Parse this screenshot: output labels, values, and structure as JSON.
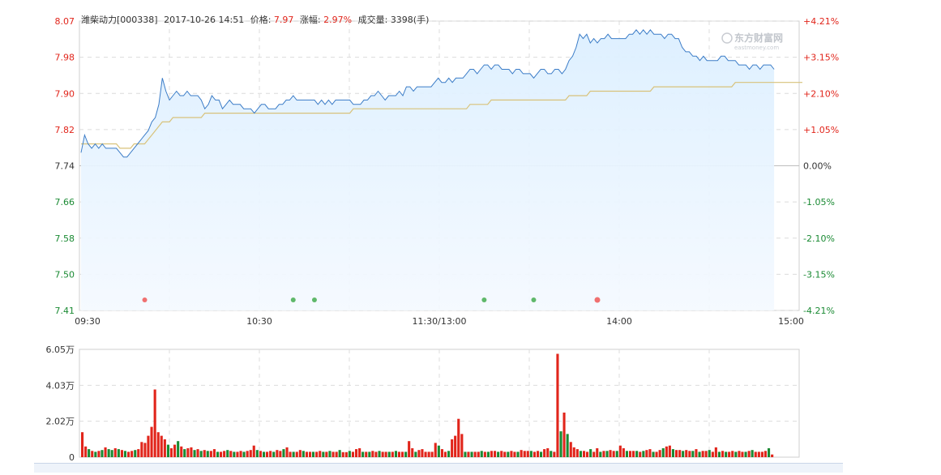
{
  "header": {
    "stock": "潍柴动力[000338]",
    "datetime": "2017-10-26 14:51",
    "price_label": "价格:",
    "price": "7.97",
    "change_label": "涨幅:",
    "change": "2.97%",
    "volume_label": "成交量:",
    "volume": "3398(手)"
  },
  "watermark": {
    "main": "东方财富网",
    "sub": "eastmoney.com"
  },
  "colors": {
    "up": "#e1251b",
    "down": "#1a8a33",
    "neutral": "#333333",
    "price_line": "#3b7cc7",
    "avg_line": "#d8c27a",
    "area_fill": "#dcefff"
  },
  "chart_data": [
    {
      "type": "line",
      "description_of_axes": "intraday price",
      "x_ticks": [
        "09:30",
        "10:30",
        "11:30/13:00",
        "14:00",
        "15:00"
      ],
      "y_left_ticks": [
        "8.07",
        "7.98",
        "7.90",
        "7.82",
        "7.74",
        "7.66",
        "7.58",
        "7.50",
        "7.41"
      ],
      "y_right_ticks": [
        "+4.21%",
        "+3.15%",
        "+2.10%",
        "+1.05%",
        "0.00%",
        "-1.05%",
        "-2.10%",
        "-3.15%",
        "-4.21%"
      ],
      "ylim": [
        7.41,
        8.07
      ],
      "prev_close": 7.74,
      "price": [
        7.77,
        7.81,
        7.79,
        7.78,
        7.79,
        7.78,
        7.79,
        7.78,
        7.78,
        7.78,
        7.78,
        7.77,
        7.76,
        7.76,
        7.77,
        7.78,
        7.79,
        7.8,
        7.81,
        7.82,
        7.84,
        7.85,
        7.88,
        7.94,
        7.91,
        7.89,
        7.9,
        7.91,
        7.9,
        7.9,
        7.91,
        7.9,
        7.9,
        7.9,
        7.89,
        7.87,
        7.88,
        7.9,
        7.89,
        7.89,
        7.87,
        7.88,
        7.89,
        7.88,
        7.88,
        7.88,
        7.87,
        7.87,
        7.87,
        7.86,
        7.87,
        7.88,
        7.88,
        7.87,
        7.87,
        7.87,
        7.88,
        7.88,
        7.89,
        7.89,
        7.9,
        7.89,
        7.89,
        7.89,
        7.89,
        7.89,
        7.89,
        7.88,
        7.89,
        7.88,
        7.89,
        7.88,
        7.89,
        7.89,
        7.89,
        7.89,
        7.89,
        7.88,
        7.88,
        7.88,
        7.89,
        7.89,
        7.9,
        7.9,
        7.91,
        7.9,
        7.89,
        7.9,
        7.9,
        7.9,
        7.91,
        7.9,
        7.92,
        7.92,
        7.91,
        7.92,
        7.92,
        7.92,
        7.92,
        7.92,
        7.93,
        7.94,
        7.93,
        7.93,
        7.94,
        7.93,
        7.94,
        7.94,
        7.94,
        7.95,
        7.96,
        7.96,
        7.95,
        7.96,
        7.97,
        7.97,
        7.96,
        7.97,
        7.97,
        7.96,
        7.96,
        7.96,
        7.95,
        7.96,
        7.96,
        7.95,
        7.95,
        7.95,
        7.94,
        7.95,
        7.96,
        7.96,
        7.95,
        7.95,
        7.96,
        7.96,
        7.95,
        7.96,
        7.98,
        7.99,
        8.01,
        8.04,
        8.03,
        8.04,
        8.02,
        8.03,
        8.02,
        8.03,
        8.03,
        8.04,
        8.03,
        8.03,
        8.03,
        8.03,
        8.03,
        8.04,
        8.04,
        8.05,
        8.04,
        8.05,
        8.04,
        8.05,
        8.04,
        8.04,
        8.04,
        8.03,
        8.04,
        8.04,
        8.03,
        8.03,
        8.01,
        8.0,
        8.0,
        7.99,
        7.99,
        7.98,
        7.99,
        7.98,
        7.98,
        7.98,
        7.98,
        7.99,
        7.99,
        7.98,
        7.98,
        7.98,
        7.97,
        7.97,
        7.97,
        7.96,
        7.97,
        7.97,
        7.96,
        7.97,
        7.97,
        7.97,
        7.96
      ],
      "average": [
        7.79,
        7.79,
        7.79,
        7.79,
        7.79,
        7.79,
        7.79,
        7.79,
        7.79,
        7.79,
        7.79,
        7.78,
        7.78,
        7.78,
        7.78,
        7.79,
        7.79,
        7.79,
        7.79,
        7.8,
        7.81,
        7.82,
        7.83,
        7.84,
        7.84,
        7.84,
        7.85,
        7.85,
        7.85,
        7.85,
        7.85,
        7.85,
        7.85,
        7.85,
        7.85,
        7.86,
        7.86,
        7.86,
        7.86,
        7.86,
        7.86,
        7.86,
        7.86,
        7.86,
        7.86,
        7.86,
        7.86,
        7.86,
        7.86,
        7.86,
        7.86,
        7.86,
        7.86,
        7.86,
        7.86,
        7.86,
        7.86,
        7.86,
        7.86,
        7.86,
        7.86,
        7.86,
        7.86,
        7.86,
        7.86,
        7.86,
        7.86,
        7.86,
        7.86,
        7.86,
        7.86,
        7.86,
        7.86,
        7.86,
        7.86,
        7.86,
        7.86,
        7.87,
        7.87,
        7.87,
        7.87,
        7.87,
        7.87,
        7.87,
        7.87,
        7.87,
        7.87,
        7.87,
        7.87,
        7.87,
        7.87,
        7.87,
        7.87,
        7.87,
        7.87,
        7.87,
        7.87,
        7.87,
        7.87,
        7.87,
        7.87,
        7.87,
        7.87,
        7.87,
        7.87,
        7.87,
        7.87,
        7.87,
        7.87,
        7.87,
        7.88,
        7.88,
        7.88,
        7.88,
        7.88,
        7.88,
        7.89,
        7.89,
        7.89,
        7.89,
        7.89,
        7.89,
        7.89,
        7.89,
        7.89,
        7.89,
        7.89,
        7.89,
        7.89,
        7.89,
        7.89,
        7.89,
        7.89,
        7.89,
        7.89,
        7.89,
        7.89,
        7.89,
        7.9,
        7.9,
        7.9,
        7.9,
        7.9,
        7.9,
        7.91,
        7.91,
        7.91,
        7.91,
        7.91,
        7.91,
        7.91,
        7.91,
        7.91,
        7.91,
        7.91,
        7.91,
        7.91,
        7.91,
        7.91,
        7.91,
        7.91,
        7.91,
        7.92,
        7.92,
        7.92,
        7.92,
        7.92,
        7.92,
        7.92,
        7.92,
        7.92,
        7.92,
        7.92,
        7.92,
        7.92,
        7.92,
        7.92,
        7.92,
        7.92,
        7.92,
        7.92,
        7.92,
        7.92,
        7.92,
        7.92,
        7.93,
        7.93,
        7.93,
        7.93,
        7.93,
        7.93,
        7.93,
        7.93,
        7.93,
        7.93,
        7.93,
        7.93,
        7.93,
        7.93,
        7.93,
        7.93,
        7.93,
        7.93,
        7.93,
        7.93
      ],
      "markers": [
        {
          "index": 18,
          "type": "up"
        },
        {
          "index": 60,
          "type": "down"
        },
        {
          "index": 66,
          "type": "down"
        },
        {
          "index": 114,
          "type": "down"
        },
        {
          "index": 128,
          "type": "down"
        },
        {
          "index": 146,
          "type": "up"
        }
      ]
    },
    {
      "type": "bar",
      "description_of_axes": "intraday volume",
      "y_ticks": [
        "6.05万",
        "4.03万",
        "2.02万",
        "0"
      ],
      "ylim": [
        0,
        60500
      ],
      "values": [
        14000,
        6000,
        4500,
        3500,
        3000,
        3500,
        4000,
        5500,
        4500,
        4000,
        5000,
        4500,
        4000,
        3500,
        3000,
        3500,
        4000,
        4500,
        8500,
        8000,
        12000,
        17000,
        38000,
        14000,
        12000,
        10000,
        7000,
        5000,
        7000,
        9000,
        6000,
        4500,
        5000,
        5500,
        4000,
        4500,
        3500,
        4000,
        3500,
        3500,
        4500,
        3000,
        3000,
        3500,
        4000,
        3500,
        3000,
        3000,
        3500,
        3000,
        3500,
        4000,
        6500,
        4000,
        3500,
        3000,
        3000,
        3500,
        3000,
        4000,
        3500,
        4500,
        5500,
        3000,
        3000,
        3000,
        4000,
        3500,
        3000,
        3000,
        3000,
        3000,
        3500,
        3000,
        3000,
        3500,
        3000,
        3000,
        4000,
        2800,
        2800,
        3500,
        3000,
        4500,
        5000,
        3000,
        3000,
        3000,
        3500,
        3000,
        3500,
        3000,
        3000,
        3000,
        3000,
        3500,
        3000,
        3000,
        3000,
        9000,
        5000,
        3000,
        4000,
        4500,
        3000,
        3000,
        3000,
        8000,
        6500,
        4500,
        3000,
        3500,
        10000,
        12000,
        21500,
        13000,
        3000,
        3000,
        3000,
        3000,
        3000,
        3500,
        3000,
        3000,
        3500,
        3500,
        3000,
        3500,
        3000,
        3000,
        3500,
        3000,
        3000,
        4000,
        3500,
        3500,
        3500,
        3000,
        3500,
        3000,
        4500,
        5000,
        3500,
        3000,
        58000,
        14500,
        25000,
        13000,
        8500,
        5500,
        4500,
        3500,
        3500,
        3000,
        4500,
        3000,
        5000,
        3000,
        3500,
        3500,
        4000,
        3500,
        3500,
        6500,
        5000,
        3500,
        3500,
        3500,
        3500,
        3000,
        3500,
        4000,
        4500,
        3000,
        3000,
        4000,
        5000,
        6000,
        6500,
        4500,
        4000,
        4000,
        3500,
        4000,
        3500,
        3500,
        4500,
        3000,
        3500,
        3500,
        4000,
        3000,
        5500,
        3000,
        3500,
        3000,
        3000,
        3500,
        3000,
        3500,
        3000,
        3000,
        3500,
        4000,
        3000,
        3000,
        3000,
        3500,
        5000,
        1500
      ],
      "colors": [
        "up",
        "up",
        "down",
        "up",
        "down",
        "up",
        "down",
        "up",
        "down",
        "down",
        "up",
        "down",
        "up",
        "down",
        "up",
        "up",
        "down",
        "up",
        "up",
        "up",
        "up",
        "up",
        "up",
        "up",
        "up",
        "up",
        "down",
        "up",
        "up",
        "down",
        "up",
        "down",
        "up",
        "up",
        "down",
        "up",
        "down",
        "up",
        "down",
        "up",
        "up",
        "down",
        "up",
        "up",
        "down",
        "up",
        "down",
        "up",
        "up",
        "down",
        "up",
        "up",
        "up",
        "down",
        "up",
        "down",
        "up",
        "up",
        "down",
        "up",
        "up",
        "down",
        "up",
        "up",
        "down",
        "up",
        "up",
        "down",
        "up",
        "up",
        "down",
        "up",
        "up",
        "down",
        "up",
        "down",
        "up",
        "up",
        "down",
        "up",
        "up",
        "down",
        "up",
        "up",
        "up",
        "down",
        "up",
        "down",
        "up",
        "up",
        "down",
        "up",
        "up",
        "down",
        "up",
        "down",
        "up",
        "up",
        "down",
        "up",
        "up",
        "down",
        "up",
        "up",
        "up",
        "up",
        "up",
        "up",
        "down",
        "up",
        "up",
        "down",
        "up",
        "up",
        "up",
        "up",
        "down",
        "up",
        "down",
        "up",
        "up",
        "down",
        "up",
        "down",
        "up",
        "up",
        "down",
        "up",
        "up",
        "down",
        "up",
        "up",
        "down",
        "up",
        "up",
        "up",
        "down",
        "up",
        "up",
        "down",
        "up",
        "up",
        "down",
        "up",
        "up",
        "down",
        "up",
        "down",
        "up",
        "up",
        "up",
        "down",
        "up",
        "up",
        "down",
        "up",
        "up",
        "down",
        "up",
        "down",
        "up",
        "up",
        "down",
        "up",
        "up",
        "down",
        "up",
        "up",
        "down",
        "up",
        "down",
        "up",
        "up",
        "down",
        "up",
        "up",
        "down",
        "up",
        "up",
        "down",
        "up",
        "up",
        "down",
        "up",
        "up",
        "down",
        "up",
        "down",
        "up",
        "up",
        "down",
        "up",
        "up",
        "down",
        "up",
        "down",
        "up",
        "up",
        "down",
        "up",
        "up",
        "down",
        "up",
        "down",
        "up",
        "up"
      ]
    }
  ]
}
